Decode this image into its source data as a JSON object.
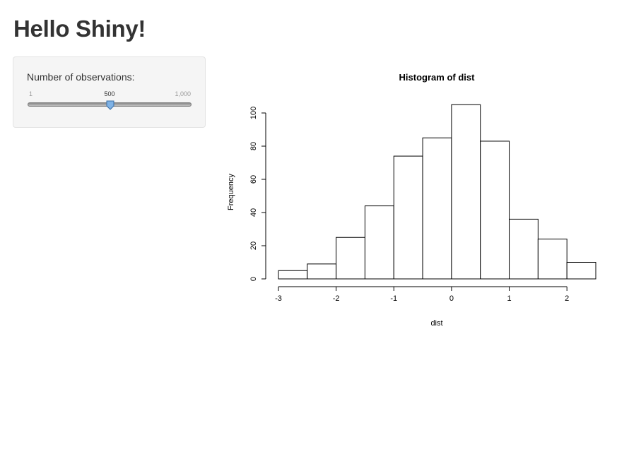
{
  "app": {
    "title": "Hello Shiny!"
  },
  "sidebar": {
    "slider": {
      "label": "Number of observations:",
      "min_label": "1",
      "max_label": "1,000",
      "value_label": "500",
      "min": 1,
      "max": 1000,
      "value": 500
    }
  },
  "colors": {
    "panel_bg": "#f5f5f5",
    "handle_fill": "#7fb2e5",
    "text": "#333333"
  },
  "chart_data": {
    "type": "bar",
    "title": "Histogram of dist",
    "xlabel": "dist",
    "ylabel": "Frequency",
    "bins": [
      {
        "start": -3.0,
        "end": -2.5,
        "count": 5
      },
      {
        "start": -2.5,
        "end": -2.0,
        "count": 9
      },
      {
        "start": -2.0,
        "end": -1.5,
        "count": 25
      },
      {
        "start": -1.5,
        "end": -1.0,
        "count": 44
      },
      {
        "start": -1.0,
        "end": -0.5,
        "count": 74
      },
      {
        "start": -0.5,
        "end": 0.0,
        "count": 85
      },
      {
        "start": 0.0,
        "end": 0.5,
        "count": 105
      },
      {
        "start": 0.5,
        "end": 1.0,
        "count": 83
      },
      {
        "start": 1.0,
        "end": 1.5,
        "count": 36
      },
      {
        "start": 1.5,
        "end": 2.0,
        "count": 24
      },
      {
        "start": 2.0,
        "end": 2.5,
        "count": 10
      }
    ],
    "x_ticks": [
      -3,
      -2,
      -1,
      0,
      1,
      2
    ],
    "x_tick_labels": [
      "-3",
      "-2",
      "-1",
      "0",
      "1",
      "2"
    ],
    "y_ticks": [
      0,
      20,
      40,
      60,
      80,
      100
    ],
    "y_tick_labels": [
      "0",
      "20",
      "40",
      "60",
      "80",
      "100"
    ],
    "xlim": [
      -3,
      2.5
    ],
    "ylim": [
      0,
      105
    ],
    "grid": false
  }
}
